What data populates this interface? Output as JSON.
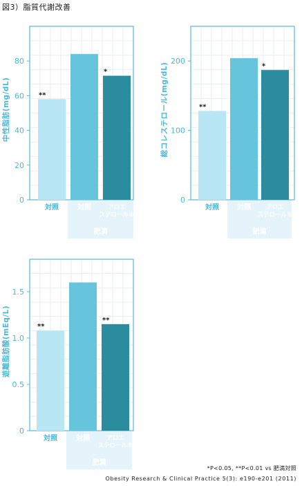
{
  "figure_title": "図3）脂質代謝改善",
  "colors": {
    "control": "#b8e6f4",
    "obese_control": "#66c5dd",
    "aloe": "#2a8c9c",
    "axis_text": "#4cb8d4",
    "axis_line": "#55b9d6",
    "grid": "#e6eef2",
    "group_band": "#e4f4fa",
    "group_text": "#ffffff"
  },
  "chart_data": [
    {
      "type": "bar",
      "ylabel": "中性脂肪(mg/dL)",
      "ylim": [
        0,
        100
      ],
      "yticks": [
        0,
        20,
        40,
        60,
        80
      ],
      "ytick_labels": [
        "0",
        "20",
        "40",
        "60",
        "80"
      ],
      "categories": [
        "対照",
        "対照",
        "アロエ\nステロール®"
      ],
      "values": [
        58,
        84,
        71.5
      ],
      "annotations": [
        "**",
        "",
        "*"
      ],
      "group_label": "肥満"
    },
    {
      "type": "bar",
      "ylabel": "総コレステロール(mg/dL)",
      "ylim": [
        0,
        250
      ],
      "yticks": [
        0,
        100,
        200
      ],
      "ytick_labels": [
        "0",
        "100",
        "200"
      ],
      "categories": [
        "対照",
        "対照",
        "アロエ\nステロール®"
      ],
      "values": [
        128,
        204,
        187
      ],
      "annotations": [
        "**",
        "",
        "*"
      ],
      "group_label": "肥満"
    },
    {
      "type": "bar",
      "ylabel": "遊離脂肪酸(mEq/L)",
      "ylim": [
        0,
        1.85
      ],
      "yticks": [
        0,
        0.5,
        1.0,
        1.5
      ],
      "ytick_labels": [
        "0",
        "0.5",
        "1.0",
        "1.5"
      ],
      "categories": [
        "対照",
        "対照",
        "アロエ\nステロール®"
      ],
      "values": [
        1.08,
        1.6,
        1.15
      ],
      "annotations": [
        "**",
        "",
        "**"
      ],
      "group_label": "肥満"
    }
  ],
  "footnote": "*P<0.05, **P<0.01 vs 肥満対照",
  "source": "Obesity Research & Clinical Practice 5(3): e190-e201 (2011)"
}
